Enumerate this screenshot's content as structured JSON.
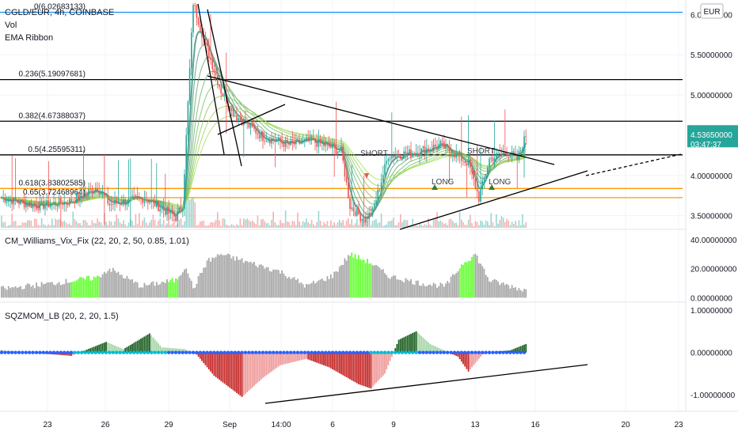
{
  "header": {
    "symbol": "CGLD/EUR, 4h, COINBASE",
    "line2": "Vol",
    "line3": "EMA Ribbon",
    "currency": "EUR"
  },
  "colors": {
    "up": "#26a69a",
    "down": "#ef5350",
    "blue_line": "#2196f3",
    "orange_line": "#ff9800",
    "vix_gray": "#a8a8a8",
    "vix_lime": "#66ff33",
    "mom_dark_green": "#1b5e20",
    "mom_light_green": "#a5d6a7",
    "mom_dark_red": "#c62828",
    "mom_light_red": "#ef9a9a",
    "zero_blue": "#2962ff",
    "zero_cyan": "#00bcd4"
  },
  "fib_levels": [
    {
      "label": "0(6.02683133)",
      "price": 6.02683133,
      "color": "#2196f3"
    },
    {
      "label": "0.236(5.19097681)",
      "price": 5.19097681,
      "color": "#000000"
    },
    {
      "label": "0.382(4.67388037)",
      "price": 4.67388037,
      "color": "#000000"
    },
    {
      "label": "0.5(4.25595311)",
      "price": 4.25595311,
      "color": "#000000"
    },
    {
      "label": "0.618(3.83802585)",
      "price": 3.83802585,
      "color": "#ff9800"
    },
    {
      "label": "0.65(3.72468964)",
      "price": 3.72468964,
      "color": "#ff9800"
    }
  ],
  "price_axis": {
    "ticks": [
      "6.00000000",
      "5.50000000",
      "5.00000000",
      "4.00000000",
      "3.50000000"
    ],
    "tick_values": [
      6.0,
      5.5,
      5.0,
      4.0,
      3.5
    ],
    "last_price": "4.53650000",
    "countdown": "03:47:37",
    "last_price_value": 4.5365
  },
  "panes": {
    "vix": {
      "title": "CM_Williams_Vix_Fix (22, 20, 2, 50, 0.85, 1.01)",
      "ticks": [
        "40.00000000",
        "20.00000000",
        "0.00000000"
      ],
      "tick_values": [
        40,
        20,
        0
      ]
    },
    "mom": {
      "title": "SQZMOM_LB (20, 2, 20, 1.5)",
      "ticks": [
        "1.00000000",
        "0.00000000",
        "-1.00000000"
      ],
      "tick_values": [
        1,
        0,
        -1
      ]
    }
  },
  "signals": [
    {
      "text": "SHORT",
      "kind": "short"
    },
    {
      "text": "SHORT",
      "kind": "short"
    },
    {
      "text": "LONG",
      "kind": "long"
    },
    {
      "text": "LONG",
      "kind": "long"
    }
  ],
  "time_axis": {
    "labels": [
      "23",
      "26",
      "29",
      "Sep",
      "14:00",
      "6",
      "9",
      "13",
      "16",
      "20",
      "23"
    ]
  },
  "chart_data": {
    "type": "candlestick",
    "title": "CGLD/EUR, 4h, COINBASE",
    "ylim": [
      3.35,
      6.18
    ],
    "price_anchors": [
      [
        0,
        3.72
      ],
      [
        20,
        3.62
      ],
      [
        40,
        3.68
      ],
      [
        55,
        3.86
      ],
      [
        62,
        3.64
      ],
      [
        82,
        3.72
      ],
      [
        100,
        3.48
      ],
      [
        104,
        3.64
      ],
      [
        110,
        6.15
      ],
      [
        116,
        5.7
      ],
      [
        126,
        5.05
      ],
      [
        134,
        4.75
      ],
      [
        150,
        4.48
      ],
      [
        165,
        4.38
      ],
      [
        178,
        4.43
      ],
      [
        195,
        4.3
      ],
      [
        200,
        3.62
      ],
      [
        208,
        3.45
      ],
      [
        213,
        3.55
      ],
      [
        222,
        4.25
      ],
      [
        236,
        4.28
      ],
      [
        252,
        4.38
      ],
      [
        268,
        4.15
      ],
      [
        274,
        3.72
      ],
      [
        280,
        4.2
      ],
      [
        290,
        4.3
      ],
      [
        296,
        4.2
      ],
      [
        301,
        4.5
      ]
    ],
    "vix_anchors": [
      [
        0,
        6
      ],
      [
        30,
        10
      ],
      [
        55,
        14
      ],
      [
        62,
        20
      ],
      [
        80,
        8
      ],
      [
        100,
        12
      ],
      [
        106,
        22
      ],
      [
        110,
        6
      ],
      [
        118,
        25
      ],
      [
        126,
        30
      ],
      [
        140,
        25
      ],
      [
        160,
        18
      ],
      [
        175,
        8
      ],
      [
        190,
        15
      ],
      [
        200,
        30
      ],
      [
        212,
        24
      ],
      [
        222,
        15
      ],
      [
        240,
        10
      ],
      [
        255,
        8
      ],
      [
        265,
        24
      ],
      [
        272,
        30
      ],
      [
        280,
        12
      ],
      [
        301,
        5
      ]
    ],
    "vix_lime_ranges": [
      [
        40,
        56
      ],
      [
        96,
        101
      ],
      [
        200,
        212
      ],
      [
        263,
        271
      ]
    ],
    "mom_anchors": [
      [
        0,
        0.05
      ],
      [
        40,
        -0.08
      ],
      [
        60,
        0.25
      ],
      [
        70,
        0.08
      ],
      [
        85,
        0.45
      ],
      [
        92,
        0.12
      ],
      [
        105,
        0.08
      ],
      [
        112,
        -0.05
      ],
      [
        122,
        -0.55
      ],
      [
        138,
        -1.05
      ],
      [
        150,
        -0.6
      ],
      [
        160,
        -0.3
      ],
      [
        175,
        -0.15
      ],
      [
        188,
        -0.35
      ],
      [
        205,
        -0.75
      ],
      [
        212,
        -0.85
      ],
      [
        220,
        -0.5
      ],
      [
        228,
        0.3
      ],
      [
        238,
        0.5
      ],
      [
        246,
        0.2
      ],
      [
        254,
        0.05
      ],
      [
        262,
        -0.1
      ],
      [
        268,
        -0.45
      ],
      [
        276,
        -0.05
      ],
      [
        284,
        0.02
      ],
      [
        292,
        0.05
      ],
      [
        301,
        0.2
      ]
    ],
    "x_ticks": [
      "23",
      "26",
      "29",
      "Sep",
      "14:00",
      "6",
      "9",
      "13",
      "16",
      "20",
      "23"
    ]
  }
}
